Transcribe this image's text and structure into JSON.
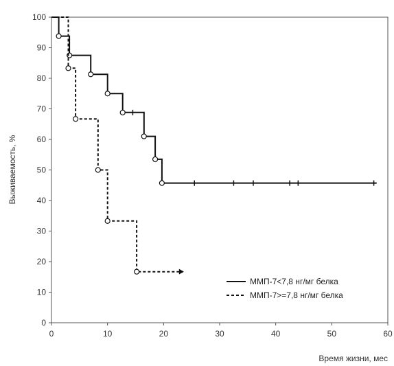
{
  "chart_data": {
    "type": "line",
    "title": "",
    "xlabel": "Время жизни, мес",
    "ylabel": "Выживаемость, %",
    "xlim": [
      0,
      60
    ],
    "ylim": [
      0,
      100
    ],
    "xticks": [
      "0",
      "10",
      "20",
      "30",
      "40",
      "50",
      "60"
    ],
    "yticks": [
      "0",
      "10",
      "20",
      "30",
      "40",
      "50",
      "60",
      "70",
      "80",
      "90",
      "100"
    ],
    "grid": false,
    "legend_position": "bottom-right",
    "series": [
      {
        "name": "ММП-7<7,8 нг/мг белка",
        "style": "solid",
        "color": "#111111",
        "steps": [
          [
            0,
            100
          ],
          [
            1.3,
            100
          ],
          [
            1.3,
            93.8
          ],
          [
            3.2,
            93.8
          ],
          [
            3.2,
            87.5
          ],
          [
            7,
            87.5
          ],
          [
            7,
            81.3
          ],
          [
            10,
            81.3
          ],
          [
            10,
            75
          ],
          [
            12.7,
            75
          ],
          [
            12.7,
            68.8
          ],
          [
            16.5,
            68.8
          ],
          [
            16.5,
            61
          ],
          [
            18.5,
            61
          ],
          [
            18.5,
            53.5
          ],
          [
            19.7,
            53.5
          ],
          [
            19.7,
            45.7
          ],
          [
            58,
            45.7
          ]
        ],
        "events": [
          [
            1.3,
            93.8
          ],
          [
            3.2,
            87.5
          ],
          [
            7,
            81.3
          ],
          [
            10,
            75
          ],
          [
            12.7,
            68.8
          ],
          [
            16.5,
            61
          ],
          [
            18.5,
            53.5
          ],
          [
            19.7,
            45.7
          ]
        ],
        "censored": [
          [
            14.5,
            68.8
          ],
          [
            25.5,
            45.7
          ],
          [
            32.5,
            45.7
          ],
          [
            36,
            45.7
          ],
          [
            42.5,
            45.7
          ],
          [
            44,
            45.7
          ],
          [
            57.5,
            45.7
          ]
        ]
      },
      {
        "name": "ММП-7>=7,8 нг/мг белка",
        "style": "dashed",
        "color": "#111111",
        "steps": [
          [
            0,
            100
          ],
          [
            3,
            100
          ],
          [
            3,
            83.3
          ],
          [
            4.3,
            83.3
          ],
          [
            4.3,
            66.7
          ],
          [
            8.3,
            66.7
          ],
          [
            8.3,
            50
          ],
          [
            10,
            50
          ],
          [
            10,
            33.3
          ],
          [
            15.2,
            33.3
          ],
          [
            15.2,
            16.7
          ],
          [
            23.5,
            16.7
          ]
        ],
        "events": [
          [
            3,
            83.3
          ],
          [
            4.3,
            66.7
          ],
          [
            8.3,
            50
          ],
          [
            10,
            33.3
          ],
          [
            15.2,
            16.7
          ]
        ],
        "censored": [
          [
            23,
            16.7
          ]
        ]
      }
    ]
  }
}
